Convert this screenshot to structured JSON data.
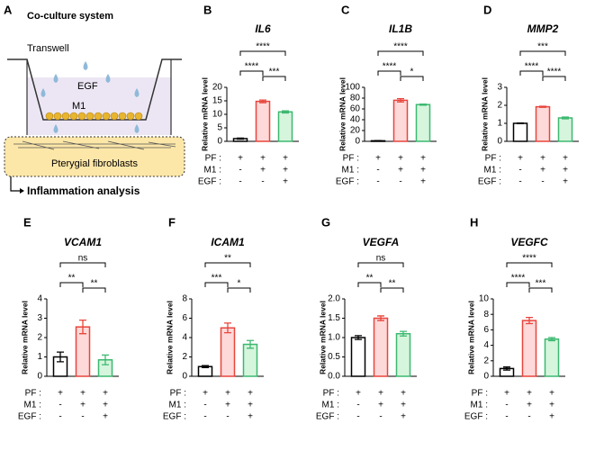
{
  "panel_a": {
    "panel": "A",
    "title": "Co-culture system",
    "transwell": "Transwell",
    "egf": "EGF",
    "m1": "M1",
    "fibroblasts": "Pterygial fibroblasts",
    "analysis": "Inflammation analysis"
  },
  "chart_data": [
    {
      "type": "bar",
      "panel": "B",
      "title": "IL6",
      "ylabel": "Relative mRNA level",
      "categories": [
        null,
        null,
        null
      ],
      "values": [
        1,
        14.8,
        10.9
      ],
      "errors": [
        0.2,
        0.5,
        0.4
      ],
      "ylim": [
        0,
        20
      ],
      "yticks": [
        0,
        5,
        10,
        15,
        20
      ],
      "annotations": [
        "****",
        "****",
        "***"
      ],
      "colors": [
        "#ffffff",
        "#fdd9d9",
        "#d6f5dd"
      ],
      "edgecolors": [
        "#000000",
        "#e8453c",
        "#3cb870"
      ],
      "conditions": [
        {
          "label": "PF :",
          "signs": [
            "+",
            "+",
            "+"
          ]
        },
        {
          "label": "M1 :",
          "signs": [
            "-",
            "+",
            "+"
          ]
        },
        {
          "label": "EGF :",
          "signs": [
            "-",
            "-",
            "+"
          ]
        }
      ]
    },
    {
      "type": "bar",
      "panel": "C",
      "title": "IL1B",
      "ylabel": "Relative mRNA level",
      "categories": [
        null,
        null,
        null
      ],
      "values": [
        1,
        76,
        68
      ],
      "errors": [
        0.5,
        3,
        1
      ],
      "ylim": [
        0,
        100
      ],
      "yticks": [
        0,
        20,
        40,
        60,
        80,
        100
      ],
      "annotations": [
        "****",
        "****",
        "*"
      ],
      "colors": [
        "#ffffff",
        "#fdd9d9",
        "#d6f5dd"
      ],
      "edgecolors": [
        "#000000",
        "#e8453c",
        "#3cb870"
      ],
      "conditions": [
        {
          "label": "PF :",
          "signs": [
            "+",
            "+",
            "+"
          ]
        },
        {
          "label": "M1 :",
          "signs": [
            "-",
            "+",
            "+"
          ]
        },
        {
          "label": "EGF :",
          "signs": [
            "-",
            "-",
            "+"
          ]
        }
      ]
    },
    {
      "type": "bar",
      "panel": "D",
      "title": "MMP2",
      "ylabel": "Relative mRNA level",
      "categories": [
        null,
        null,
        null
      ],
      "values": [
        1,
        1.92,
        1.3
      ],
      "errors": [
        0.02,
        0.03,
        0.05
      ],
      "ylim": [
        0,
        3
      ],
      "yticks": [
        0,
        1,
        2,
        3
      ],
      "annotations": [
        "****",
        "***",
        "****"
      ],
      "colors": [
        "#ffffff",
        "#fdd9d9",
        "#d6f5dd"
      ],
      "edgecolors": [
        "#000000",
        "#e8453c",
        "#3cb870"
      ],
      "conditions": [
        {
          "label": "PF :",
          "signs": [
            "+",
            "+",
            "+"
          ]
        },
        {
          "label": "M1 :",
          "signs": [
            "-",
            "+",
            "+"
          ]
        },
        {
          "label": "EGF :",
          "signs": [
            "-",
            "-",
            "+"
          ]
        }
      ]
    },
    {
      "type": "bar",
      "panel": "E",
      "title": "VCAM1",
      "ylabel": "Relative mRNA level",
      "categories": [
        null,
        null,
        null
      ],
      "values": [
        1,
        2.55,
        0.85
      ],
      "errors": [
        0.25,
        0.35,
        0.25
      ],
      "ylim": [
        0,
        4
      ],
      "yticks": [
        0,
        1,
        2,
        3,
        4
      ],
      "annotations": [
        "**",
        "ns",
        "**"
      ],
      "colors": [
        "#ffffff",
        "#fdd9d9",
        "#d6f5dd"
      ],
      "edgecolors": [
        "#000000",
        "#e8453c",
        "#3cb870"
      ],
      "conditions": [
        {
          "label": "PF :",
          "signs": [
            "+",
            "+",
            "+"
          ]
        },
        {
          "label": "M1 :",
          "signs": [
            "-",
            "+",
            "+"
          ]
        },
        {
          "label": "EGF :",
          "signs": [
            "-",
            "-",
            "+"
          ]
        }
      ]
    },
    {
      "type": "bar",
      "panel": "F",
      "title": "ICAM1",
      "ylabel": "Relative mRNA level",
      "categories": [
        null,
        null,
        null
      ],
      "values": [
        1,
        5.0,
        3.3
      ],
      "errors": [
        0.1,
        0.5,
        0.4
      ],
      "ylim": [
        0,
        8
      ],
      "yticks": [
        0,
        2,
        4,
        6,
        8
      ],
      "annotations": [
        "***",
        "**",
        "*"
      ],
      "colors": [
        "#ffffff",
        "#fdd9d9",
        "#d6f5dd"
      ],
      "edgecolors": [
        "#000000",
        "#e8453c",
        "#3cb870"
      ],
      "conditions": [
        {
          "label": "PF :",
          "signs": [
            "+",
            "+",
            "+"
          ]
        },
        {
          "label": "M1 :",
          "signs": [
            "-",
            "+",
            "+"
          ]
        },
        {
          "label": "EGF :",
          "signs": [
            "-",
            "-",
            "+"
          ]
        }
      ]
    },
    {
      "type": "bar",
      "panel": "G",
      "title": "VEGFA",
      "ylabel": "Relative mRNA level",
      "categories": [
        null,
        null,
        null
      ],
      "values": [
        1.0,
        1.5,
        1.1
      ],
      "errors": [
        0.05,
        0.06,
        0.06
      ],
      "ylim": [
        0,
        2
      ],
      "yticks": [
        {
          "value": 0,
          "label": "0.0"
        },
        0.5,
        {
          "value": 1,
          "label": "1.0"
        },
        1.5,
        {
          "value": 2,
          "label": "2.0"
        }
      ],
      "annotations": [
        "**",
        "ns",
        "**"
      ],
      "colors": [
        "#ffffff",
        "#fdd9d9",
        "#d6f5dd"
      ],
      "edgecolors": [
        "#000000",
        "#e8453c",
        "#3cb870"
      ],
      "conditions": [
        {
          "label": "PF :",
          "signs": [
            "+",
            "+",
            "+"
          ]
        },
        {
          "label": "M1 :",
          "signs": [
            "-",
            "+",
            "+"
          ]
        },
        {
          "label": "EGF :",
          "signs": [
            "-",
            "-",
            "+"
          ]
        }
      ]
    },
    {
      "type": "bar",
      "panel": "H",
      "title": "VEGFC",
      "ylabel": "Relative mRNA level",
      "categories": [
        null,
        null,
        null
      ],
      "values": [
        1,
        7.2,
        4.8
      ],
      "errors": [
        0.2,
        0.4,
        0.2
      ],
      "ylim": [
        0,
        10
      ],
      "yticks": [
        0,
        2,
        4,
        6,
        8,
        10
      ],
      "annotations": [
        "****",
        "****",
        "***"
      ],
      "colors": [
        "#ffffff",
        "#fdd9d9",
        "#d6f5dd"
      ],
      "edgecolors": [
        "#000000",
        "#e8453c",
        "#3cb870"
      ],
      "conditions": [
        {
          "label": "PF :",
          "signs": [
            "+",
            "+",
            "+"
          ]
        },
        {
          "label": "M1 :",
          "signs": [
            "-",
            "+",
            "+"
          ]
        },
        {
          "label": "EGF :",
          "signs": [
            "-",
            "-",
            "+"
          ]
        }
      ]
    }
  ]
}
